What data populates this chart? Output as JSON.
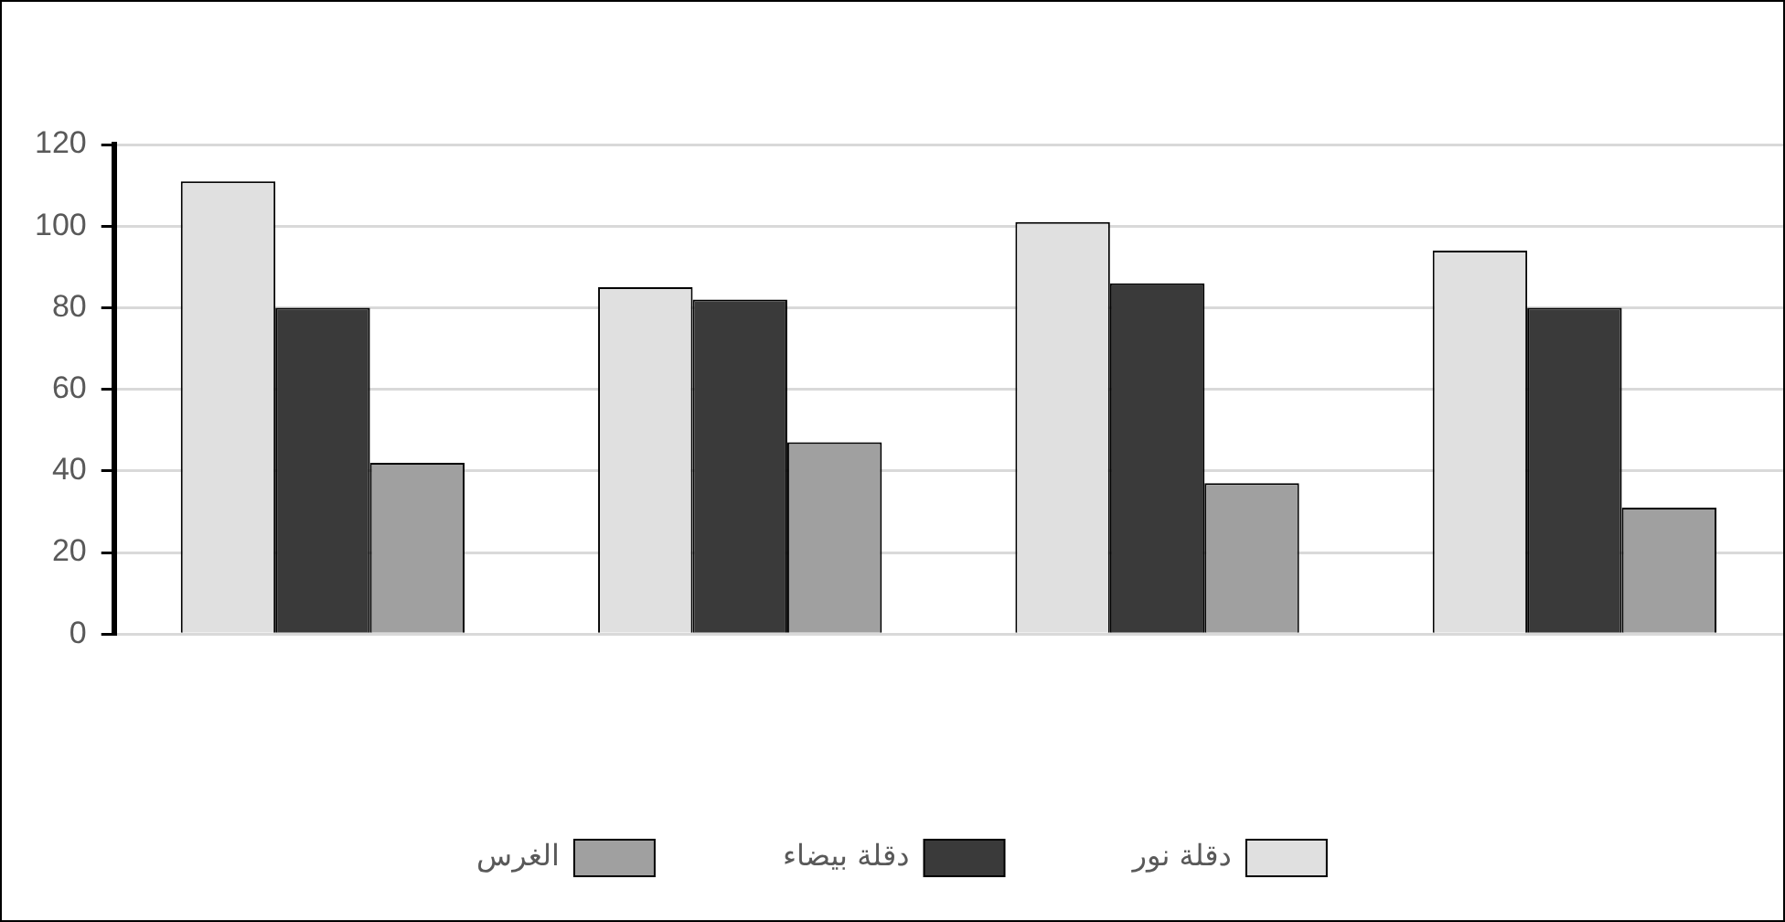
{
  "chart_data": {
    "type": "bar",
    "categories": [
      null,
      null,
      null,
      null
    ],
    "series": [
      {
        "name": "دقلة نور",
        "color": "#e0e0e0",
        "values": [
          111,
          85,
          101,
          94
        ]
      },
      {
        "name": "دقلة بيضاء",
        "color": "#3a3a3a",
        "values": [
          80,
          82,
          86,
          80
        ]
      },
      {
        "name": "الغرس",
        "color": "#a0a0a0",
        "values": [
          42,
          47,
          37,
          31
        ]
      }
    ],
    "ylim": [
      0,
      120
    ],
    "yticks": [
      0,
      20,
      40,
      60,
      80,
      100,
      120
    ],
    "grid": "y",
    "legend": "bottom"
  }
}
